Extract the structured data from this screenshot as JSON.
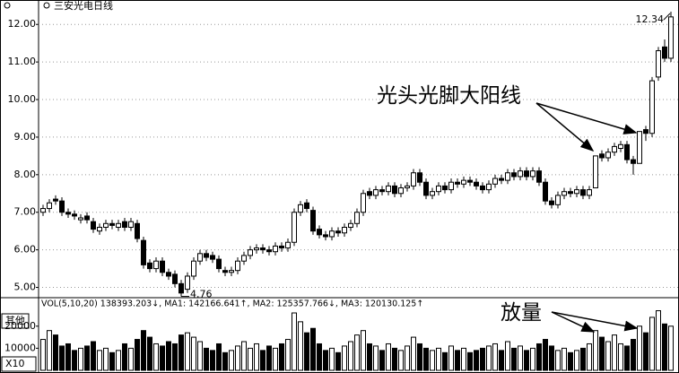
{
  "chart_data": {
    "type": "candlestick",
    "title": "三安光电日线",
    "open": [
      7.0,
      7.1,
      7.35,
      7.3,
      7.0,
      6.95,
      6.8,
      6.9,
      6.75,
      6.5,
      6.6,
      6.7,
      6.6,
      6.75,
      6.6,
      6.7,
      6.25,
      5.65,
      5.5,
      5.7,
      5.4,
      5.35,
      5.1,
      4.95,
      5.3,
      5.7,
      5.9,
      5.85,
      5.75,
      5.45,
      5.4,
      5.45,
      5.7,
      5.85,
      6.0,
      6.05,
      6.0,
      5.95,
      6.1,
      6.05,
      6.2,
      7.0,
      7.25,
      7.05,
      6.55,
      6.4,
      6.35,
      6.5,
      6.45,
      6.6,
      6.7,
      7.0,
      7.55,
      7.45,
      7.6,
      7.55,
      7.7,
      7.5,
      7.65,
      7.7,
      8.05,
      7.8,
      7.45,
      7.55,
      7.7,
      7.6,
      7.8,
      7.75,
      7.85,
      7.8,
      7.7,
      7.6,
      7.75,
      7.9,
      7.85,
      8.05,
      7.95,
      8.1,
      7.95,
      8.1,
      7.8,
      7.3,
      7.2,
      7.45,
      7.55,
      7.5,
      7.6,
      7.45,
      7.65,
      8.55,
      8.45,
      8.6,
      8.7,
      8.8,
      8.4,
      8.3,
      9.2,
      9.1,
      10.6,
      11.4,
      11.1
    ],
    "high": [
      7.2,
      7.35,
      7.45,
      7.4,
      7.1,
      7.05,
      6.95,
      7.0,
      6.85,
      6.7,
      6.8,
      6.8,
      6.8,
      6.85,
      6.85,
      6.8,
      6.35,
      5.75,
      5.8,
      5.8,
      5.5,
      5.45,
      5.2,
      5.4,
      5.8,
      6.0,
      6.0,
      5.95,
      5.85,
      5.55,
      5.55,
      5.8,
      5.95,
      6.1,
      6.15,
      6.15,
      6.1,
      6.2,
      6.2,
      6.3,
      7.1,
      7.3,
      7.35,
      7.15,
      6.65,
      6.5,
      6.6,
      6.6,
      6.7,
      6.8,
      7.1,
      7.6,
      7.65,
      7.7,
      7.7,
      7.8,
      7.8,
      7.75,
      7.8,
      8.15,
      8.15,
      7.9,
      7.65,
      7.8,
      7.8,
      7.9,
      7.9,
      7.95,
      7.95,
      7.9,
      7.8,
      7.85,
      8.0,
      8.0,
      8.15,
      8.15,
      8.2,
      8.2,
      8.2,
      8.2,
      7.9,
      7.4,
      7.55,
      7.65,
      7.65,
      7.7,
      7.7,
      7.7,
      8.5,
      8.65,
      8.7,
      8.85,
      8.9,
      8.9,
      8.5,
      9.15,
      9.3,
      10.6,
      11.4,
      11.6,
      12.34
    ],
    "low": [
      6.9,
      7.0,
      7.2,
      6.9,
      6.85,
      6.8,
      6.7,
      6.7,
      6.45,
      6.4,
      6.5,
      6.55,
      6.5,
      6.5,
      6.5,
      6.2,
      5.5,
      5.4,
      5.4,
      5.3,
      5.2,
      5.0,
      4.76,
      4.85,
      5.2,
      5.6,
      5.7,
      5.65,
      5.4,
      5.3,
      5.3,
      5.35,
      5.6,
      5.75,
      5.9,
      5.9,
      5.85,
      5.85,
      5.95,
      5.95,
      6.1,
      6.9,
      7.0,
      6.4,
      6.3,
      6.25,
      6.25,
      6.35,
      6.35,
      6.5,
      6.6,
      6.9,
      7.35,
      7.35,
      7.45,
      7.45,
      7.4,
      7.4,
      7.55,
      7.6,
      7.7,
      7.35,
      7.35,
      7.45,
      7.5,
      7.5,
      7.65,
      7.65,
      7.7,
      7.6,
      7.5,
      7.5,
      7.65,
      7.75,
      7.75,
      7.85,
      7.85,
      7.85,
      7.85,
      7.7,
      7.2,
      7.1,
      7.1,
      7.35,
      7.4,
      7.4,
      7.35,
      7.35,
      7.65,
      8.35,
      8.35,
      8.5,
      8.6,
      8.3,
      8.0,
      8.3,
      8.9,
      9.0,
      10.5,
      11.0,
      11.0
    ],
    "close": [
      7.1,
      7.25,
      7.3,
      7.0,
      6.95,
      6.9,
      6.85,
      6.8,
      6.55,
      6.6,
      6.7,
      6.65,
      6.7,
      6.6,
      6.75,
      6.3,
      5.6,
      5.5,
      5.7,
      5.4,
      5.3,
      5.1,
      4.85,
      5.3,
      5.7,
      5.9,
      5.8,
      5.75,
      5.5,
      5.4,
      5.45,
      5.7,
      5.85,
      6.0,
      6.05,
      6.0,
      5.95,
      6.1,
      6.05,
      6.2,
      7.0,
      7.2,
      7.1,
      6.5,
      6.4,
      6.35,
      6.5,
      6.45,
      6.6,
      6.7,
      7.0,
      7.5,
      7.45,
      7.6,
      7.55,
      7.7,
      7.5,
      7.65,
      7.7,
      8.05,
      7.8,
      7.45,
      7.55,
      7.7,
      7.6,
      7.8,
      7.75,
      7.85,
      7.8,
      7.7,
      7.6,
      7.75,
      7.9,
      7.85,
      8.05,
      7.95,
      8.1,
      7.95,
      8.1,
      7.8,
      7.3,
      7.2,
      7.45,
      7.55,
      7.5,
      7.6,
      7.45,
      7.6,
      8.5,
      8.45,
      8.6,
      8.75,
      8.8,
      8.4,
      8.3,
      9.15,
      9.1,
      10.5,
      11.3,
      11.1,
      12.2
    ],
    "volume": [
      14000,
      18000,
      16000,
      11000,
      12000,
      9000,
      10000,
      11000,
      13000,
      9000,
      10000,
      8000,
      9000,
      12000,
      10000,
      14000,
      18000,
      15000,
      12000,
      11000,
      13000,
      12000,
      16000,
      17000,
      15000,
      13000,
      10000,
      9000,
      12000,
      8000,
      9000,
      11000,
      13000,
      10000,
      12000,
      9000,
      11000,
      10000,
      12000,
      14000,
      26000,
      22000,
      17000,
      19000,
      12000,
      9000,
      10000,
      8000,
      11000,
      13000,
      16000,
      18000,
      12000,
      11000,
      9000,
      12000,
      10000,
      9000,
      11000,
      15000,
      12000,
      10000,
      9000,
      10000,
      8000,
      11000,
      9000,
      10000,
      8000,
      9000,
      10000,
      11000,
      12000,
      9000,
      13000,
      10000,
      11000,
      9000,
      10000,
      12000,
      14000,
      11000,
      9000,
      10000,
      8000,
      9000,
      10000,
      12000,
      18000,
      15000,
      13000,
      16000,
      12000,
      11000,
      14000,
      20000,
      17000,
      24000,
      27000,
      21000,
      20000
    ],
    "ylim": [
      4.75,
      12.65
    ],
    "yticks": [
      {
        "value": 5,
        "label": "5.00"
      },
      {
        "value": 6,
        "label": "6.00"
      },
      {
        "value": 7,
        "label": "7.00"
      },
      {
        "value": 8,
        "label": "8.00"
      },
      {
        "value": 9,
        "label": "9.00"
      },
      {
        "value": 10,
        "label": "10.00"
      },
      {
        "value": 11,
        "label": "11.00"
      },
      {
        "value": 12,
        "label": "12.00"
      }
    ],
    "volume_ylim": [
      0,
      32500
    ],
    "volume_yticks": [
      10000,
      20000
    ],
    "volume_indicator": "VOL(5,10,20)  138393.203↓, MA1: 142166.641↑, MA2: 125357.766↓, MA3: 120130.125↑",
    "volume_unit": "X10",
    "button": "其他",
    "annotations": [
      "光头光脚大阳线",
      "放量"
    ],
    "grid": true,
    "up_color": "#ffffff",
    "down_color": "#000000"
  }
}
